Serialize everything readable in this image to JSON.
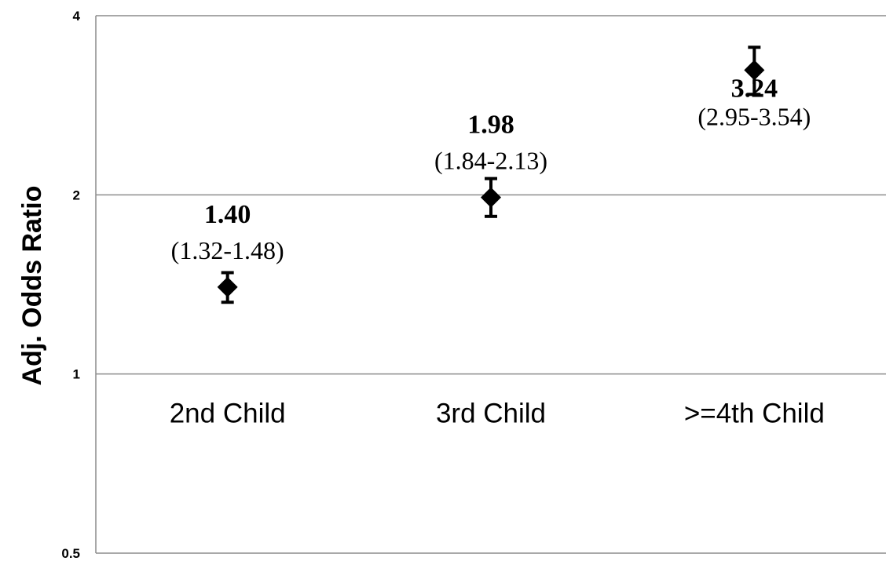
{
  "chart_data": {
    "type": "scatter",
    "title": "",
    "xlabel": "",
    "ylabel": "Adj. Odds Ratio",
    "y_scale": "log2",
    "ylim": [
      0.5,
      4
    ],
    "yticks": [
      "0.5",
      "1",
      "2",
      "4"
    ],
    "grid": "horizontal",
    "categories": [
      "2nd Child",
      "3rd Child",
      ">=4th  Child"
    ],
    "points": [
      {
        "category": "2nd Child",
        "value": 1.4,
        "value_label": "1.40",
        "ci_low": 1.32,
        "ci_high": 1.48,
        "ci_label": "(1.32-1.48)"
      },
      {
        "category": "3rd Child",
        "value": 1.98,
        "value_label": "1.98",
        "ci_low": 1.84,
        "ci_high": 2.13,
        "ci_label": "(1.84-2.13)"
      },
      {
        "category": ">=4th  Child",
        "value": 3.24,
        "value_label": "3.24",
        "ci_low": 2.95,
        "ci_high": 3.54,
        "ci_label": "(2.95-3.54)"
      }
    ],
    "marker": "diamond",
    "colors": {
      "marker": "#000000",
      "grid": "#8c8c8c",
      "axis": "#8c8c8c"
    }
  }
}
